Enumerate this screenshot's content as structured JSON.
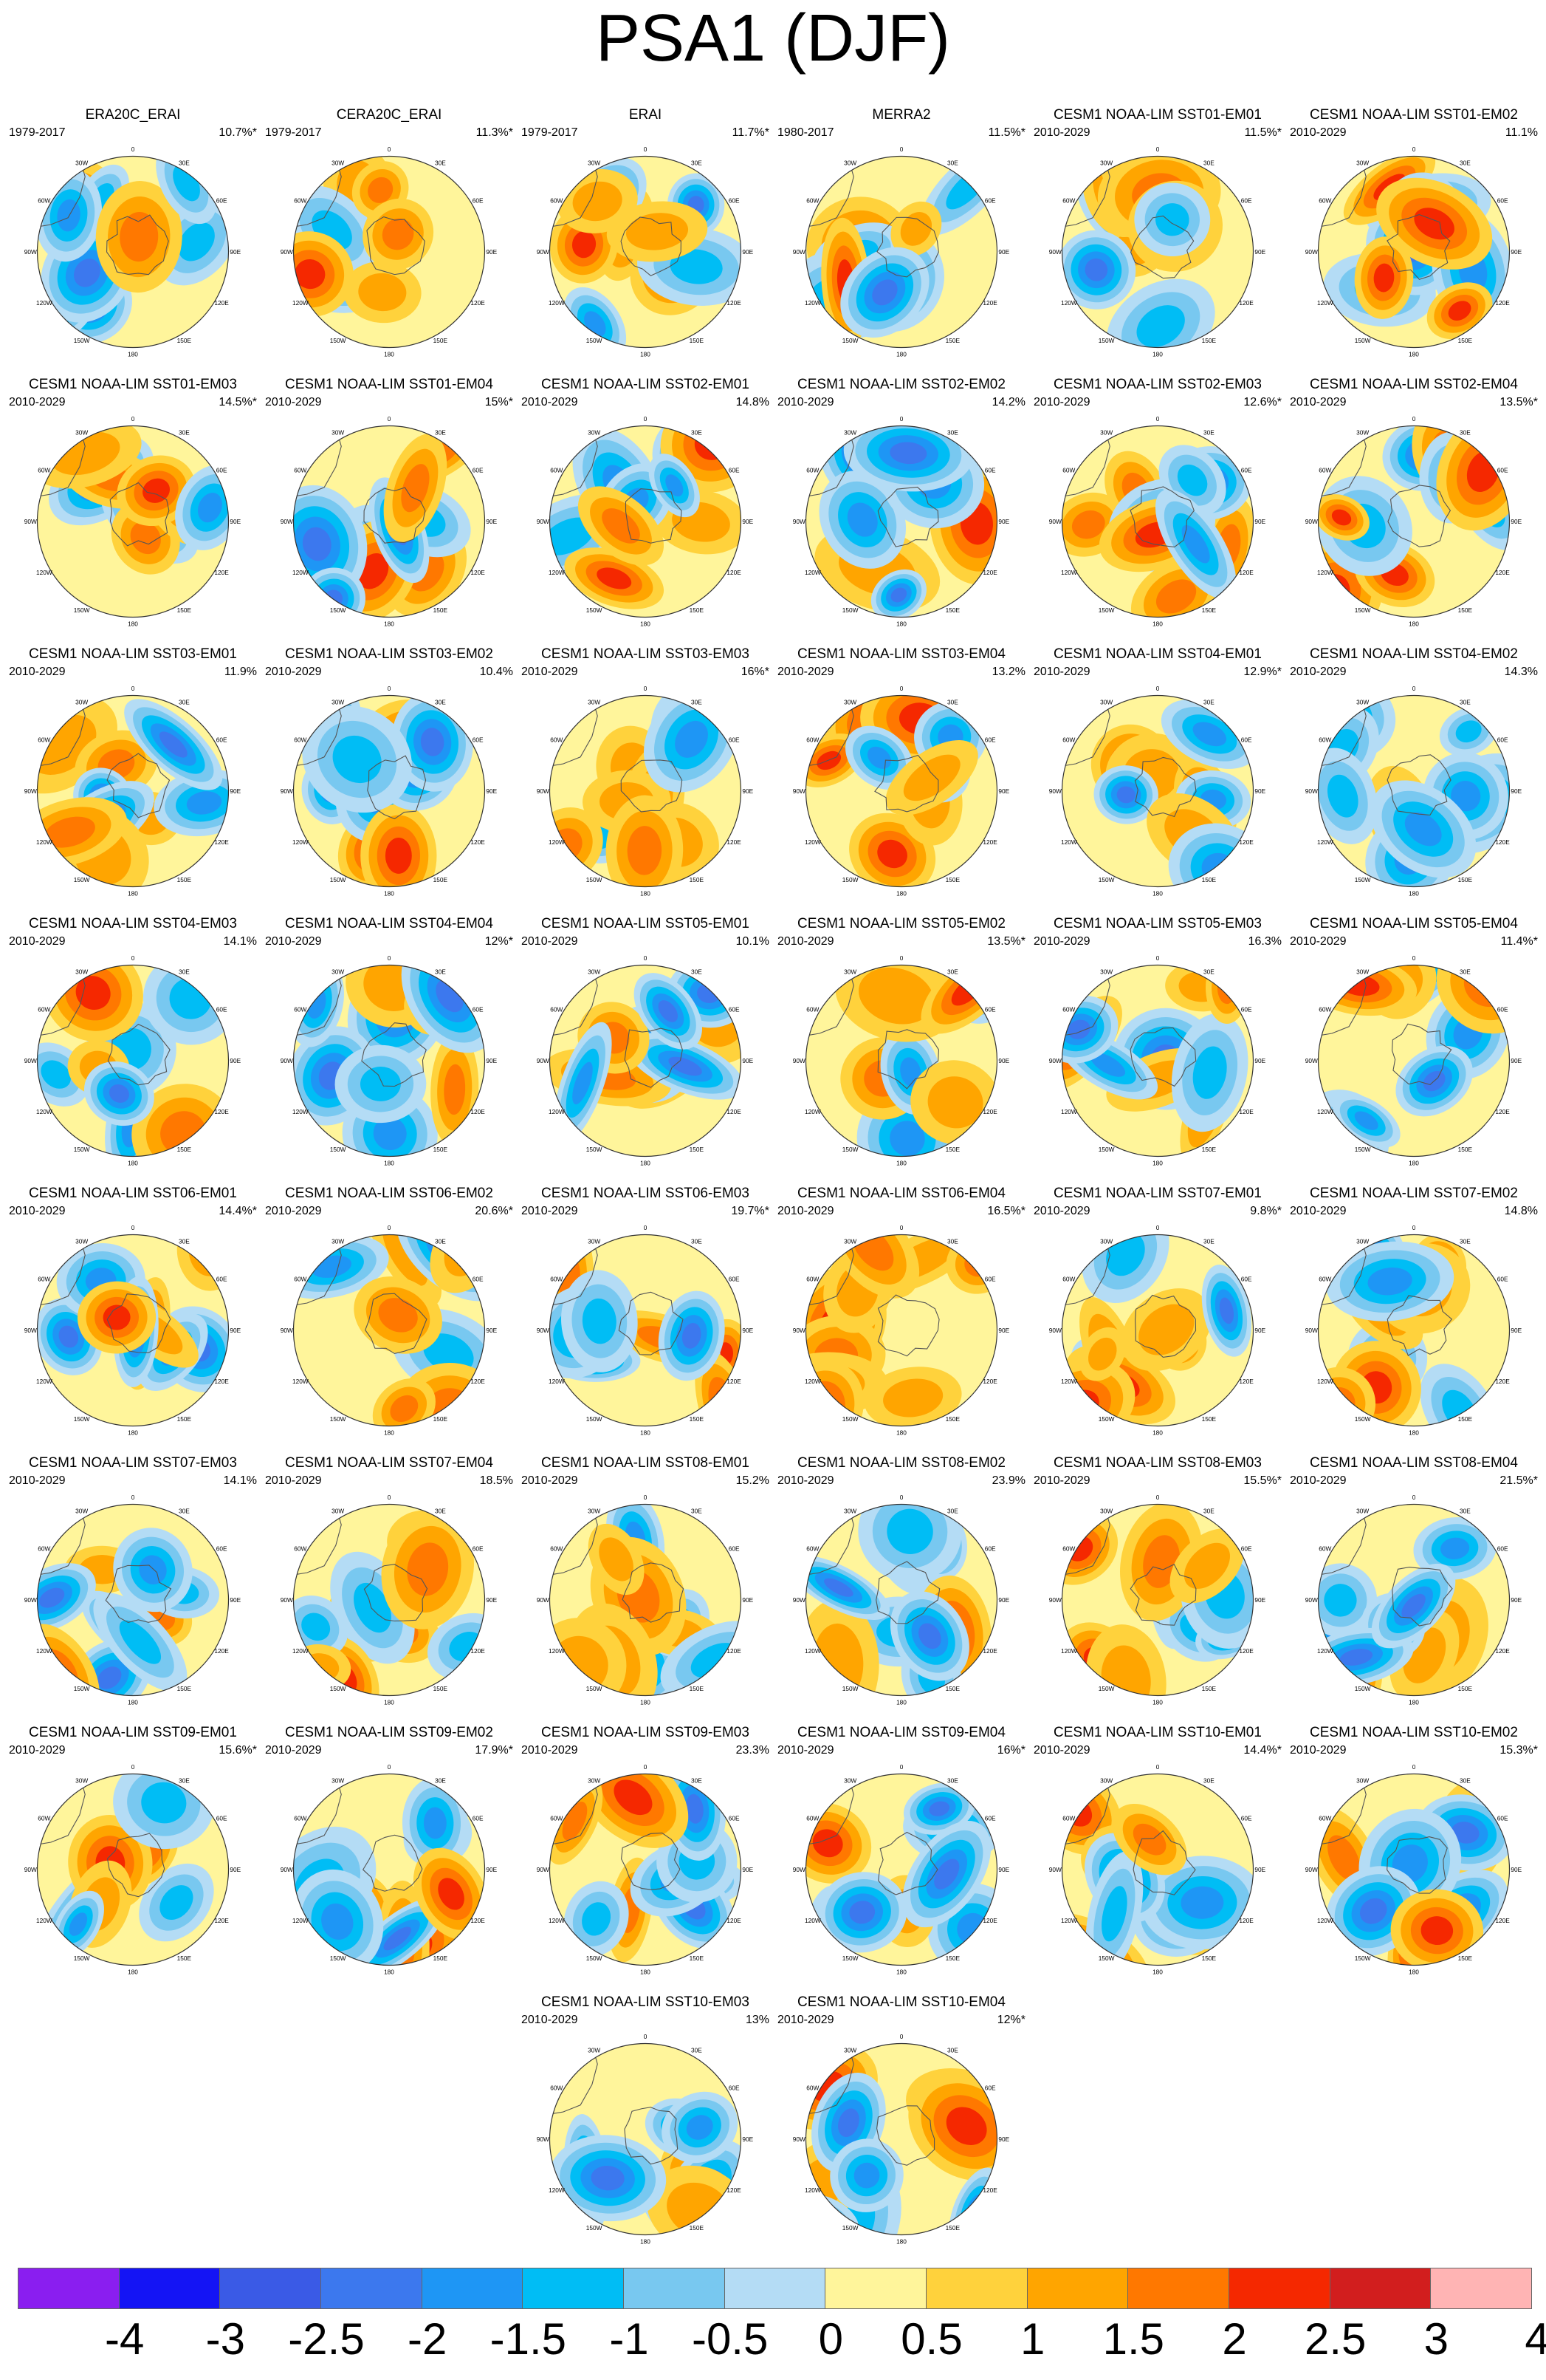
{
  "title": "PSA1 (DJF)",
  "panels": [
    {
      "title": "ERA20C_ERAI",
      "period": "1979-2017",
      "pct": "10.7%*"
    },
    {
      "title": "CERA20C_ERAI",
      "period": "1979-2017",
      "pct": "11.3%*"
    },
    {
      "title": "ERAI",
      "period": "1979-2017",
      "pct": "11.7%*"
    },
    {
      "title": "MERRA2",
      "period": "1980-2017",
      "pct": "11.5%*"
    },
    {
      "title": "CESM1 NOAA-LIM SST01-EM01",
      "period": "2010-2029",
      "pct": "11.5%*"
    },
    {
      "title": "CESM1 NOAA-LIM SST01-EM02",
      "period": "2010-2029",
      "pct": "11.1%"
    },
    {
      "title": "CESM1 NOAA-LIM SST01-EM03",
      "period": "2010-2029",
      "pct": "14.5%*"
    },
    {
      "title": "CESM1 NOAA-LIM SST01-EM04",
      "period": "2010-2029",
      "pct": "15%*"
    },
    {
      "title": "CESM1 NOAA-LIM SST02-EM01",
      "period": "2010-2029",
      "pct": "14.8%"
    },
    {
      "title": "CESM1 NOAA-LIM SST02-EM02",
      "period": "2010-2029",
      "pct": "14.2%"
    },
    {
      "title": "CESM1 NOAA-LIM SST02-EM03",
      "period": "2010-2029",
      "pct": "12.6%*"
    },
    {
      "title": "CESM1 NOAA-LIM SST02-EM04",
      "period": "2010-2029",
      "pct": "13.5%*"
    },
    {
      "title": "CESM1 NOAA-LIM SST03-EM01",
      "period": "2010-2029",
      "pct": "11.9%"
    },
    {
      "title": "CESM1 NOAA-LIM SST03-EM02",
      "period": "2010-2029",
      "pct": "10.4%"
    },
    {
      "title": "CESM1 NOAA-LIM SST03-EM03",
      "period": "2010-2029",
      "pct": "16%*"
    },
    {
      "title": "CESM1 NOAA-LIM SST03-EM04",
      "period": "2010-2029",
      "pct": "13.2%"
    },
    {
      "title": "CESM1 NOAA-LIM SST04-EM01",
      "period": "2010-2029",
      "pct": "12.9%*"
    },
    {
      "title": "CESM1 NOAA-LIM SST04-EM02",
      "period": "2010-2029",
      "pct": "14.3%"
    },
    {
      "title": "CESM1 NOAA-LIM SST04-EM03",
      "period": "2010-2029",
      "pct": "14.1%"
    },
    {
      "title": "CESM1 NOAA-LIM SST04-EM04",
      "period": "2010-2029",
      "pct": "12%*"
    },
    {
      "title": "CESM1 NOAA-LIM SST05-EM01",
      "period": "2010-2029",
      "pct": "10.1%"
    },
    {
      "title": "CESM1 NOAA-LIM SST05-EM02",
      "period": "2010-2029",
      "pct": "13.5%*"
    },
    {
      "title": "CESM1 NOAA-LIM SST05-EM03",
      "period": "2010-2029",
      "pct": "16.3%"
    },
    {
      "title": "CESM1 NOAA-LIM SST05-EM04",
      "period": "2010-2029",
      "pct": "11.4%*"
    },
    {
      "title": "CESM1 NOAA-LIM SST06-EM01",
      "period": "2010-2029",
      "pct": "14.4%*"
    },
    {
      "title": "CESM1 NOAA-LIM SST06-EM02",
      "period": "2010-2029",
      "pct": "20.6%*"
    },
    {
      "title": "CESM1 NOAA-LIM SST06-EM03",
      "period": "2010-2029",
      "pct": "19.7%*"
    },
    {
      "title": "CESM1 NOAA-LIM SST06-EM04",
      "period": "2010-2029",
      "pct": "16.5%*"
    },
    {
      "title": "CESM1 NOAA-LIM SST07-EM01",
      "period": "2010-2029",
      "pct": "9.8%*"
    },
    {
      "title": "CESM1 NOAA-LIM SST07-EM02",
      "period": "2010-2029",
      "pct": "14.8%"
    },
    {
      "title": "CESM1 NOAA-LIM SST07-EM03",
      "period": "2010-2029",
      "pct": "14.1%"
    },
    {
      "title": "CESM1 NOAA-LIM SST07-EM04",
      "period": "2010-2029",
      "pct": "18.5%"
    },
    {
      "title": "CESM1 NOAA-LIM SST08-EM01",
      "period": "2010-2029",
      "pct": "15.2%"
    },
    {
      "title": "CESM1 NOAA-LIM SST08-EM02",
      "period": "2010-2029",
      "pct": "23.9%"
    },
    {
      "title": "CESM1 NOAA-LIM SST08-EM03",
      "period": "2010-2029",
      "pct": "15.5%*"
    },
    {
      "title": "CESM1 NOAA-LIM SST08-EM04",
      "period": "2010-2029",
      "pct": "21.5%*"
    },
    {
      "title": "CESM1 NOAA-LIM SST09-EM01",
      "period": "2010-2029",
      "pct": "15.6%*"
    },
    {
      "title": "CESM1 NOAA-LIM SST09-EM02",
      "period": "2010-2029",
      "pct": "17.9%*"
    },
    {
      "title": "CESM1 NOAA-LIM SST09-EM03",
      "period": "2010-2029",
      "pct": "23.3%"
    },
    {
      "title": "CESM1 NOAA-LIM SST09-EM04",
      "period": "2010-2029",
      "pct": "16%*"
    },
    {
      "title": "CESM1 NOAA-LIM SST10-EM01",
      "period": "2010-2029",
      "pct": "14.4%*"
    },
    {
      "title": "CESM1 NOAA-LIM SST10-EM02",
      "period": "2010-2029",
      "pct": "15.3%*"
    },
    {
      "title": "CESM1 NOAA-LIM SST10-EM03",
      "period": "2010-2029",
      "pct": "13%"
    },
    {
      "title": "CESM1 NOAA-LIM SST10-EM04",
      "period": "2010-2029",
      "pct": "12%*"
    }
  ],
  "lon_labels": [
    "0",
    "30E",
    "60E",
    "90E",
    "120E",
    "150E",
    "180",
    "150W",
    "120W",
    "90W",
    "60W",
    "30W"
  ],
  "colorbar": {
    "labels": [
      "-4",
      "-3",
      "-2.5",
      "-2",
      "-1.5",
      "-1",
      "-0.5",
      "0",
      "0.5",
      "1",
      "1.5",
      "2",
      "2.5",
      "3",
      "4"
    ],
    "colors": [
      "#8a1ef0",
      "#1414f5",
      "#3a5ae6",
      "#3c78ee",
      "#1e96f5",
      "#00bdf5",
      "#78c8f0",
      "#b4dcf5",
      "#fff59b",
      "#ffd23c",
      "#ffa500",
      "#ff7800",
      "#f52800",
      "#d21e1e",
      "#ffb4b4"
    ]
  }
}
